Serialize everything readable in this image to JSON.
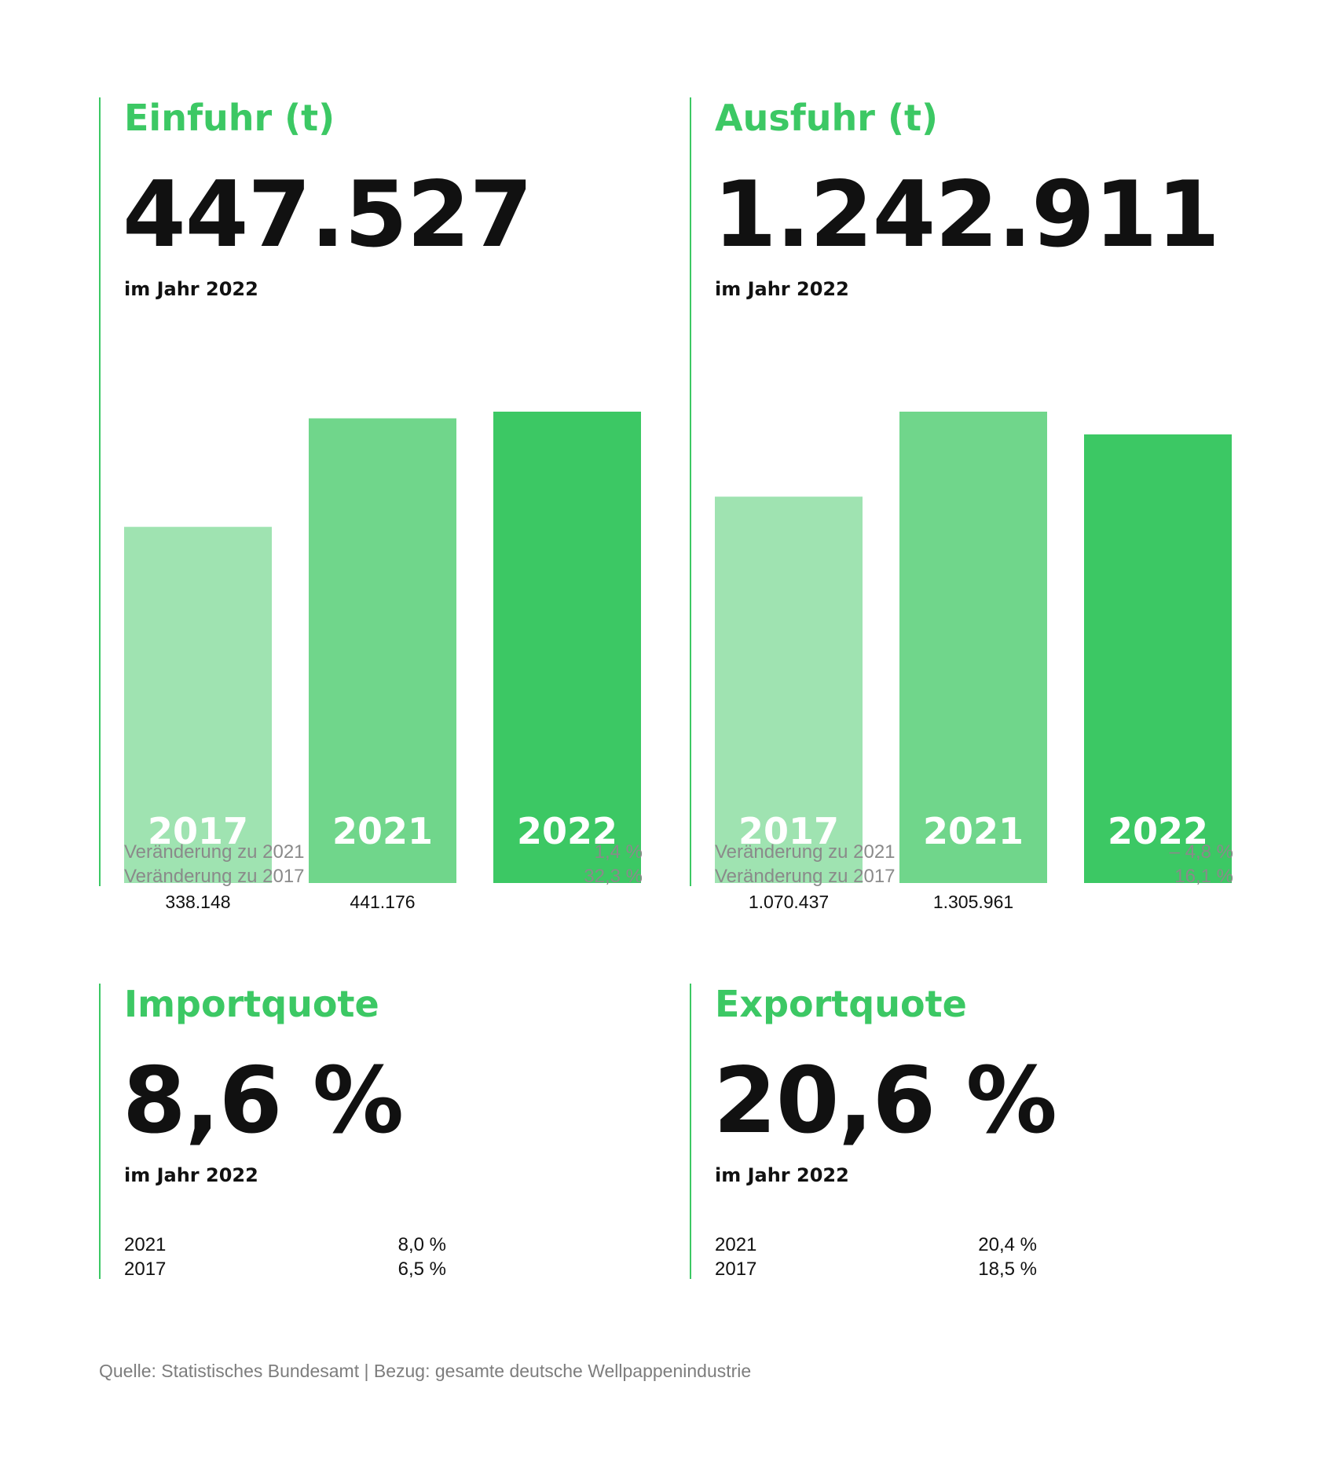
{
  "colors": {
    "accent": "#3cc864",
    "bar_2017": "#9fe3b1",
    "bar_2021": "#70d68b",
    "bar_2022": "#3cc864",
    "text_dark": "#111111",
    "text_muted": "#8a8a8a"
  },
  "panels": {
    "einfuhr": {
      "title": "Einfuhr (t)",
      "value": "447.527",
      "subtitle": "im Jahr 2022",
      "changes": [
        {
          "label": "Veränderung zu 2021",
          "value": "1,4 %"
        },
        {
          "label": "Veränderung zu 2017",
          "value": "32,3 %"
        }
      ]
    },
    "ausfuhr": {
      "title": "Ausfuhr (t)",
      "value": "1.242.911",
      "subtitle": "im Jahr 2022",
      "changes": [
        {
          "label": "Veränderung zu 2021",
          "value": "– 4,8 %"
        },
        {
          "label": "Veränderung zu 2017",
          "value": "16,1 %"
        }
      ]
    },
    "importquote": {
      "title": "Importquote",
      "value": "8,6 %",
      "subtitle": "im Jahr 2022",
      "rows": [
        {
          "label": "2021",
          "value": "8,0 %"
        },
        {
          "label": "2017",
          "value": "6,5 %"
        }
      ]
    },
    "exportquote": {
      "title": "Exportquote",
      "value": "20,6 %",
      "subtitle": "im Jahr 2022",
      "rows": [
        {
          "label": "2021",
          "value": "20,4 %"
        },
        {
          "label": "2017",
          "value": "18,5 %"
        }
      ]
    }
  },
  "chart_data": [
    {
      "type": "bar",
      "title": "Einfuhr (t)",
      "categories": [
        "2017",
        "2021",
        "2022"
      ],
      "values": [
        338148,
        441176,
        447527
      ],
      "value_labels": [
        "338.148",
        "441.176",
        ""
      ],
      "ylim": [
        0,
        447527
      ],
      "grid": false,
      "legend": "none"
    },
    {
      "type": "bar",
      "title": "Ausfuhr (t)",
      "categories": [
        "2017",
        "2021",
        "2022"
      ],
      "values": [
        1070437,
        1305961,
        1242911
      ],
      "value_labels": [
        "1.070.437",
        "1.305.961",
        ""
      ],
      "ylim": [
        0,
        1305961
      ],
      "grid": false,
      "legend": "none"
    }
  ],
  "footer": "Quelle: Statistisches Bundesamt | Bezug: gesamte deutsche Wellpappenindustrie"
}
